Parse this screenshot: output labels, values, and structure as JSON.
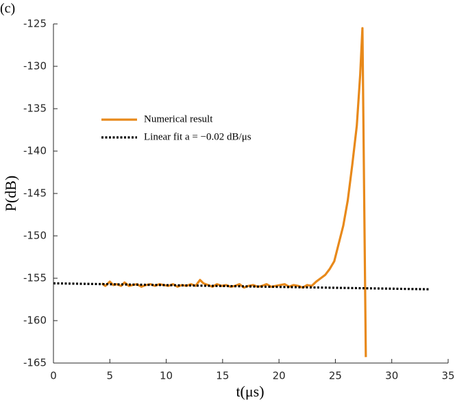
{
  "chart_data": {
    "type": "line",
    "panel_label": "(c)",
    "xlabel": "t(μs)",
    "ylabel": "P(dB)",
    "xlim": [
      0,
      35
    ],
    "xticks": [
      0,
      5,
      10,
      15,
      20,
      25,
      30,
      35
    ],
    "ylim": [
      -165,
      -125
    ],
    "yticks": [
      -165,
      -160,
      -155,
      -150,
      -145,
      -140,
      -135,
      -130,
      -125
    ],
    "series": [
      {
        "name": "Numerical result",
        "color": "#e8891a",
        "style": "solid",
        "x": [
          4.3,
          4.6,
          5.0,
          5.3,
          5.6,
          6.0,
          6.3,
          6.7,
          7.0,
          7.4,
          7.8,
          8.2,
          8.6,
          9.0,
          9.4,
          9.8,
          10.2,
          10.6,
          11.0,
          11.4,
          11.8,
          12.2,
          12.6,
          13.0,
          13.3,
          13.7,
          14.1,
          14.5,
          14.9,
          15.3,
          15.7,
          16.1,
          16.5,
          16.9,
          17.3,
          17.7,
          18.1,
          18.5,
          18.9,
          19.3,
          19.7,
          20.1,
          20.5,
          20.9,
          21.3,
          21.7,
          22.1,
          22.5,
          22.9,
          23.3,
          23.7,
          24.1,
          24.5,
          24.9,
          25.3,
          25.7,
          26.1,
          26.5,
          26.9,
          27.2,
          27.4,
          27.7
        ],
        "values": [
          -155.6,
          -155.9,
          -155.4,
          -155.8,
          -155.7,
          -155.9,
          -155.5,
          -155.9,
          -155.8,
          -155.7,
          -156.0,
          -155.8,
          -155.7,
          -155.9,
          -155.7,
          -155.8,
          -155.9,
          -155.7,
          -156.0,
          -155.8,
          -155.9,
          -155.7,
          -155.9,
          -155.2,
          -155.6,
          -155.8,
          -156.0,
          -155.7,
          -155.9,
          -155.8,
          -156.0,
          -155.9,
          -155.7,
          -156.1,
          -155.9,
          -155.8,
          -156.0,
          -155.9,
          -155.7,
          -156.0,
          -155.9,
          -155.8,
          -155.7,
          -156.0,
          -155.8,
          -155.9,
          -156.1,
          -155.8,
          -155.9,
          -155.4,
          -155.0,
          -154.6,
          -153.9,
          -153.0,
          -150.9,
          -148.8,
          -145.8,
          -141.6,
          -137.0,
          -131.0,
          -125.5,
          -164.3
        ]
      },
      {
        "name": "Linear fit a = −0.02 dB/μs",
        "color": "#000000",
        "style": "dotted",
        "x": [
          0,
          33.3
        ],
        "values": [
          -155.6,
          -156.3
        ]
      }
    ]
  }
}
